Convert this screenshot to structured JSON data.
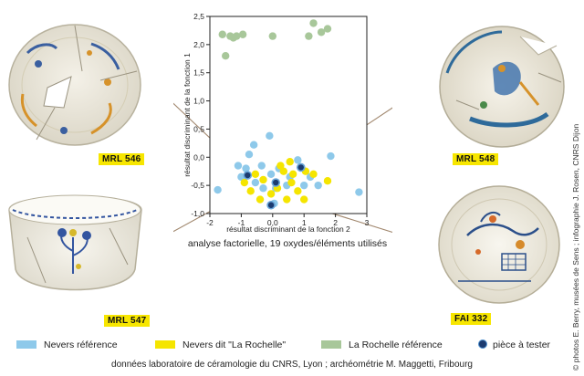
{
  "plates": [
    {
      "label": "MRL 546"
    },
    {
      "label": "MRL 548"
    },
    {
      "label": "MRL 547"
    },
    {
      "label": "FAI 332"
    }
  ],
  "caption": "analyse factorielle, 19 oxydes/éléments utilisés",
  "credit": "© photos E. Berry, musées de Sens ; infographie J. Rosen, CNRS Dijon",
  "footer": "données laboratoire de céramologie du CNRS, Lyon ; archéométrie M. Maggetti, Fribourg",
  "legend": [
    {
      "label": "Nevers référence",
      "color": "#8ec9ea"
    },
    {
      "label": "Nevers dit \"La Rochelle\"",
      "color": "#f5e500"
    },
    {
      "label": "La Rochelle référence",
      "color": "#a8c79a"
    },
    {
      "label": "pièce à tester",
      "color": "#1c3b70"
    }
  ],
  "chart_data": {
    "type": "scatter",
    "xlabel": "résultat discriminant de la fonction 2",
    "ylabel": "résultat discriminant de la fonction 1",
    "xlim": [
      -2,
      3
    ],
    "ylim": [
      -1.0,
      2.5
    ],
    "xticks": [
      "-2",
      "-1",
      "0,0",
      "1",
      "2",
      "3"
    ],
    "yticks": [
      "-1,0",
      "-0,5",
      "0,0",
      "0,5",
      "1,0",
      "1,5",
      "2,0",
      "2,5"
    ],
    "grid": false,
    "series": [
      {
        "name": "Nevers référence",
        "color": "#8ec9ea",
        "points": [
          [
            -1.75,
            -0.58
          ],
          [
            -1.1,
            -0.15
          ],
          [
            -1.0,
            -0.35
          ],
          [
            -0.75,
            0.05
          ],
          [
            -0.6,
            0.22
          ],
          [
            -0.35,
            -0.15
          ],
          [
            -0.1,
            0.38
          ],
          [
            0.2,
            -0.2
          ],
          [
            0.45,
            -0.5
          ],
          [
            0.05,
            -0.82
          ],
          [
            -0.3,
            -0.55
          ],
          [
            0.8,
            -0.05
          ],
          [
            1.2,
            -0.35
          ],
          [
            1.45,
            -0.5
          ],
          [
            1.85,
            0.02
          ],
          [
            2.75,
            -0.62
          ],
          [
            -0.55,
            -0.45
          ],
          [
            0.1,
            -0.55
          ],
          [
            0.55,
            -0.35
          ],
          [
            -0.05,
            -0.3
          ],
          [
            1.0,
            -0.5
          ],
          [
            -0.85,
            -0.2
          ]
        ]
      },
      {
        "name": "Nevers dit \"La Rochelle\"",
        "color": "#f5e500",
        "points": [
          [
            -0.9,
            -0.45
          ],
          [
            -0.7,
            -0.6
          ],
          [
            -0.55,
            -0.3
          ],
          [
            -0.3,
            -0.4
          ],
          [
            -0.05,
            -0.65
          ],
          [
            0.15,
            -0.55
          ],
          [
            0.35,
            -0.25
          ],
          [
            0.55,
            -0.08
          ],
          [
            0.6,
            -0.45
          ],
          [
            0.8,
            -0.6
          ],
          [
            1.05,
            -0.25
          ],
          [
            1.3,
            -0.3
          ],
          [
            1.75,
            -0.42
          ],
          [
            -0.4,
            -0.75
          ],
          [
            0.45,
            -0.75
          ],
          [
            0.25,
            -0.15
          ],
          [
            1.0,
            -0.75
          ],
          [
            0.65,
            -0.3
          ]
        ]
      },
      {
        "name": "La Rochelle référence",
        "color": "#a8c79a",
        "points": [
          [
            -1.6,
            2.18
          ],
          [
            -1.35,
            2.15
          ],
          [
            -1.15,
            2.15
          ],
          [
            -0.95,
            2.18
          ],
          [
            -1.5,
            1.8
          ],
          [
            0.0,
            2.15
          ],
          [
            1.15,
            2.15
          ],
          [
            1.3,
            2.38
          ],
          [
            1.55,
            2.22
          ],
          [
            1.75,
            2.28
          ],
          [
            -1.25,
            2.12
          ]
        ]
      },
      {
        "name": "pièce à tester",
        "color": "#1c3b70",
        "points": [
          [
            -0.8,
            -0.32
          ],
          [
            0.1,
            -0.45
          ],
          [
            0.9,
            -0.18
          ],
          [
            -0.05,
            -0.85
          ]
        ]
      }
    ]
  }
}
